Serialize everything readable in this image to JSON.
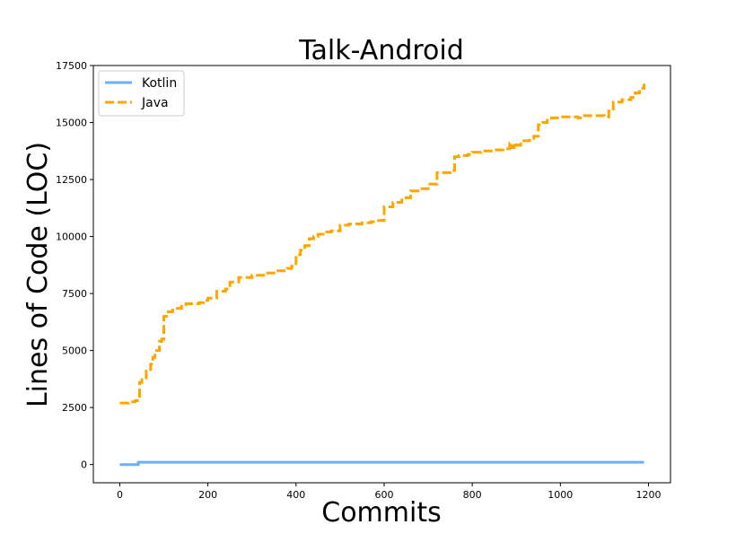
{
  "chart_data": {
    "type": "line",
    "title": "Talk-Android",
    "xlabel": "Commits",
    "ylabel": "Lines of Code (LOC)",
    "xlim": [
      -60,
      1250
    ],
    "ylim": [
      -800,
      17500
    ],
    "xticks": [
      0,
      200,
      400,
      600,
      800,
      1000,
      1200
    ],
    "yticks": [
      0,
      2500,
      5000,
      7500,
      10000,
      12500,
      15000,
      17500
    ],
    "grid": false,
    "legend_position": "top-left",
    "series": [
      {
        "name": "Kotlin",
        "color": "#6ab0f3",
        "style": "solid",
        "x": [
          0,
          40,
          42,
          1190
        ],
        "y": [
          0,
          0,
          100,
          100
        ]
      },
      {
        "name": "Java",
        "color": "#ffa500",
        "style": "dashed",
        "x": [
          0,
          20,
          35,
          40,
          45,
          50,
          60,
          70,
          75,
          80,
          90,
          95,
          100,
          110,
          120,
          140,
          150,
          180,
          190,
          200,
          220,
          240,
          250,
          270,
          300,
          330,
          350,
          380,
          390,
          400,
          410,
          420,
          430,
          440,
          450,
          470,
          480,
          500,
          520,
          550,
          570,
          580,
          590,
          600,
          620,
          640,
          650,
          660,
          680,
          700,
          720,
          750,
          760,
          770,
          790,
          800,
          820,
          850,
          870,
          880,
          885,
          890,
          895,
          900,
          910,
          930,
          940,
          950,
          960,
          970,
          980,
          1000,
          1020,
          1040,
          1050,
          1070,
          1080,
          1090,
          1100,
          1110,
          1120,
          1140,
          1160,
          1170,
          1180,
          1190
        ],
        "y": [
          2700,
          2750,
          2800,
          2900,
          3600,
          3800,
          4100,
          4400,
          4700,
          5000,
          5400,
          5500,
          6500,
          6700,
          6850,
          7000,
          7050,
          7100,
          7200,
          7300,
          7600,
          7700,
          8000,
          8200,
          8300,
          8400,
          8500,
          8600,
          8700,
          9200,
          9400,
          9600,
          9900,
          10000,
          10100,
          10200,
          10250,
          10500,
          10550,
          10600,
          10650,
          10700,
          10700,
          11300,
          11500,
          11600,
          11700,
          12000,
          12100,
          12300,
          12800,
          12900,
          13500,
          13550,
          13600,
          13700,
          13750,
          13800,
          13850,
          13850,
          14100,
          13900,
          14100,
          14000,
          14200,
          14300,
          14400,
          14900,
          15000,
          15100,
          15200,
          15250,
          15250,
          15200,
          15300,
          15300,
          15300,
          15300,
          15250,
          15500,
          15900,
          16000,
          16100,
          16300,
          16500,
          16700
        ]
      }
    ]
  }
}
